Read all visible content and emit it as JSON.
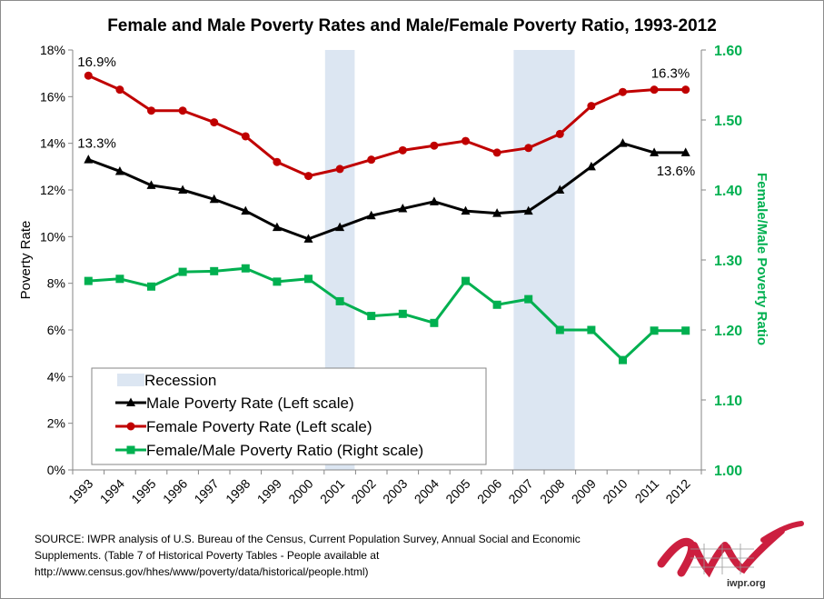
{
  "title": "Female and Male Poverty Rates and Male/Female Poverty Ratio, 1993-2012",
  "source_lines": [
    "SOURCE: IWPR analysis of U.S. Bureau of the Census, Current Population Survey, Annual Social and Economic",
    "Supplements. (Table 7 of Historical Poverty Tables - People available at",
    "http://www.census.gov/hhes/www/poverty/data/historical/people.html)"
  ],
  "logo_text": "iwpr.org",
  "colors": {
    "male": "#000000",
    "female": "#c00000",
    "ratio": "#00b050",
    "recession": "#dce6f2",
    "right_axis": "#00b050"
  },
  "chart_data": {
    "type": "line",
    "title": "Female and Male Poverty Rates and Male/Female Poverty Ratio, 1993-2012",
    "ylabel": "Poverty Rate",
    "y2label": "Female/Male Poverty Ratio",
    "xlabel": "",
    "categories": [
      "1993",
      "1994",
      "1995",
      "1996",
      "1997",
      "1998",
      "1999",
      "2000",
      "2001",
      "2002",
      "2003",
      "2004",
      "2005",
      "2006",
      "2007",
      "2008",
      "2009",
      "2010",
      "2011",
      "2012"
    ],
    "ylim": [
      0,
      18
    ],
    "y2lim": [
      1.0,
      1.6
    ],
    "yticks": [
      "0%",
      "2%",
      "4%",
      "6%",
      "8%",
      "10%",
      "12%",
      "14%",
      "16%",
      "18%"
    ],
    "y2ticks": [
      "1.00",
      "1.10",
      "1.20",
      "1.30",
      "1.40",
      "1.50",
      "1.60"
    ],
    "grid": false,
    "recessions": [
      {
        "start": "2001",
        "end": "2001"
      },
      {
        "start": "2007",
        "end": "2008"
      }
    ],
    "series": [
      {
        "name": "Male Poverty Rate (Left scale)",
        "axis": "left",
        "marker": "triangle",
        "values": [
          13.3,
          12.8,
          12.2,
          12.0,
          11.6,
          11.1,
          10.4,
          9.9,
          10.4,
          10.9,
          11.2,
          11.5,
          11.1,
          11.0,
          11.1,
          12.0,
          13.0,
          14.0,
          13.6,
          13.6
        ]
      },
      {
        "name": "Female Poverty Rate  (Left scale)",
        "axis": "left",
        "marker": "circle",
        "values": [
          16.9,
          16.3,
          15.4,
          15.4,
          14.9,
          14.3,
          13.2,
          12.6,
          12.9,
          13.3,
          13.7,
          13.9,
          14.1,
          13.6,
          13.8,
          14.4,
          15.6,
          16.2,
          16.3,
          16.3
        ]
      },
      {
        "name": "Female/Male Poverty Ratio (Right scale)",
        "axis": "right",
        "marker": "square",
        "values": [
          1.27,
          1.273,
          1.262,
          1.283,
          1.284,
          1.288,
          1.269,
          1.273,
          1.241,
          1.22,
          1.223,
          1.21,
          1.27,
          1.236,
          1.244,
          1.2,
          1.2,
          1.157,
          1.199,
          1.199
        ]
      }
    ],
    "legend": {
      "placement": "bottom-left",
      "recession_label": "Recession",
      "entries": [
        "Male Poverty Rate (Left scale)",
        "Female Poverty Rate  (Left scale)",
        "Female/Male Poverty Ratio (Right scale)"
      ]
    },
    "annotations": [
      "16.9%",
      "13.3%",
      "16.3%",
      "13.6%"
    ]
  }
}
